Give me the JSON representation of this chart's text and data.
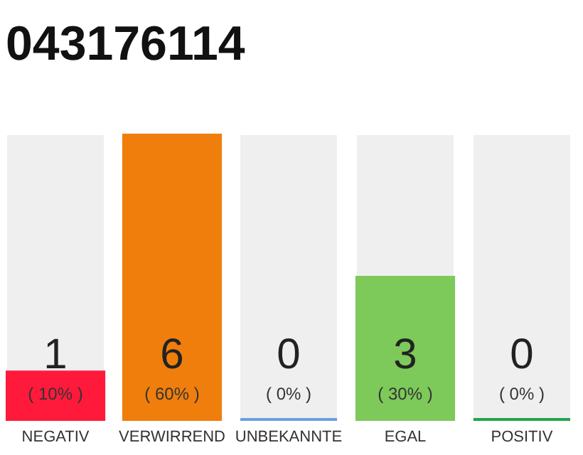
{
  "chart_data": {
    "type": "bar",
    "title": "043176114",
    "categories": [
      "NEGATIV",
      "VERWIRREND",
      "UNBEKANNTE",
      "EGAL",
      "POSITIV"
    ],
    "values": [
      1,
      6,
      0,
      3,
      0
    ],
    "colors": [
      "#ff1a3c",
      "#f07e0c",
      "#6a9fe0",
      "#7dc95a",
      "#22a34a"
    ],
    "value_labels": [
      "1",
      "6",
      "0",
      "3",
      "0"
    ],
    "annotations": [
      "( 10% )",
      "( 60% )",
      "( 0% )",
      "( 30% )",
      "( 0% )"
    ]
  }
}
